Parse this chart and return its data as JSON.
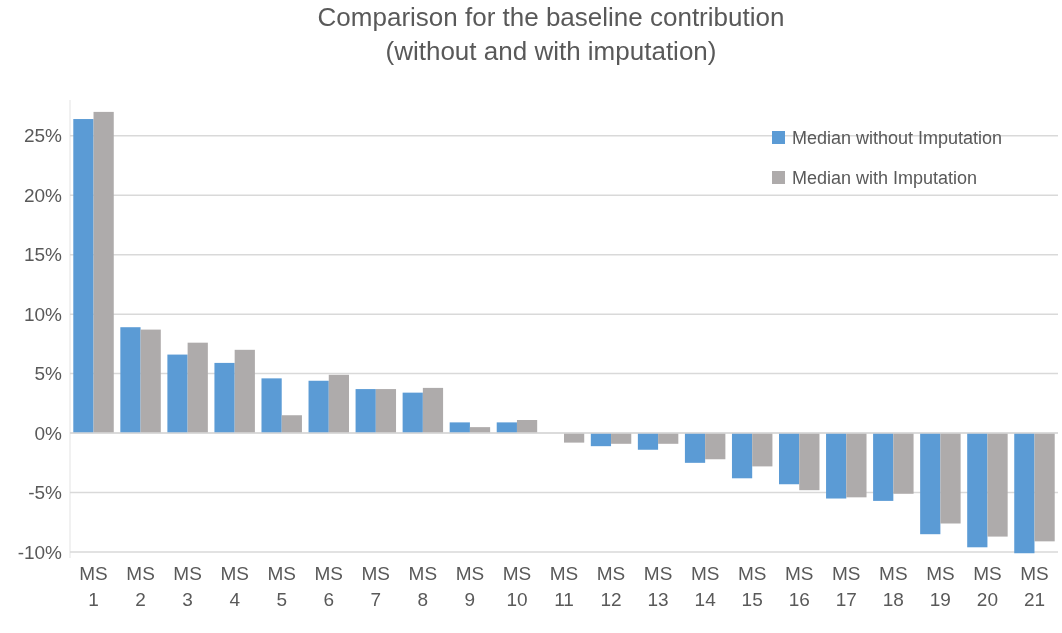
{
  "chart_data": {
    "type": "bar",
    "title": "Comparison for the baseline contribution\n(without and with imputation)",
    "categories": [
      "MS 1",
      "MS 2",
      "MS 3",
      "MS 4",
      "MS 5",
      "MS 6",
      "MS 7",
      "MS 8",
      "MS 9",
      "MS 10",
      "MS 11",
      "MS 12",
      "MS 13",
      "MS 14",
      "MS 15",
      "MS 16",
      "MS 17",
      "MS 18",
      "MS 19",
      "MS 20",
      "MS 21"
    ],
    "series": [
      {
        "name": "Median without Imputation",
        "color": "#5b9bd5",
        "values": [
          26.4,
          8.9,
          6.6,
          5.9,
          4.6,
          4.4,
          3.7,
          3.4,
          0.9,
          0.9,
          null,
          -1.1,
          -1.4,
          -2.5,
          -3.8,
          -4.3,
          -5.5,
          -5.7,
          -8.5,
          -9.6,
          -10.1
        ]
      },
      {
        "name": "Median with Imputation",
        "color": "#aeabab",
        "values": [
          27.0,
          8.7,
          7.6,
          7.0,
          1.5,
          4.9,
          3.7,
          3.8,
          0.5,
          1.1,
          -0.8,
          -0.9,
          -0.9,
          -2.2,
          -2.8,
          -4.8,
          -5.4,
          -5.1,
          -7.6,
          -8.7,
          -9.1
        ]
      }
    ],
    "ylim": [
      -10.5,
      28
    ],
    "yticks": [
      {
        "value": -10,
        "label": "-10%"
      },
      {
        "value": -5,
        "label": "-5%"
      },
      {
        "value": 0,
        "label": "0%"
      },
      {
        "value": 5,
        "label": "5%"
      },
      {
        "value": 10,
        "label": "10%"
      },
      {
        "value": 15,
        "label": "15%"
      },
      {
        "value": 20,
        "label": "20%"
      },
      {
        "value": 25,
        "label": "25%"
      }
    ],
    "grid": "y",
    "legend": "top right"
  }
}
